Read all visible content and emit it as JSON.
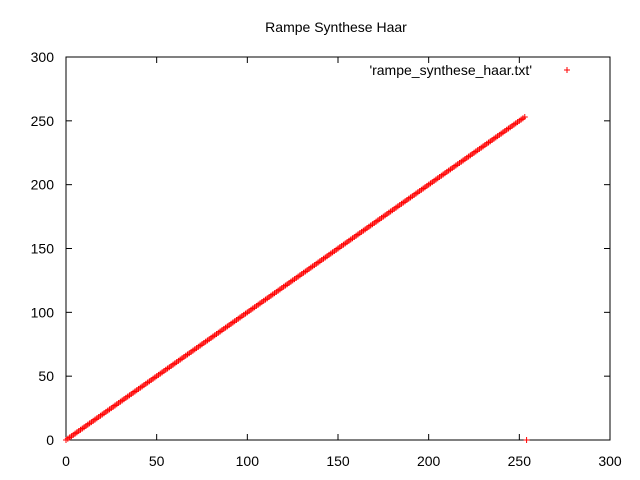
{
  "chart_data": {
    "type": "scatter",
    "title": "Rampe Synthese Haar",
    "xlabel": "",
    "ylabel": "",
    "xlim": [
      0,
      300
    ],
    "ylim": [
      0,
      300
    ],
    "x_ticks": [
      0,
      50,
      100,
      150,
      200,
      250,
      300
    ],
    "y_ticks": [
      0,
      50,
      100,
      150,
      200,
      250,
      300
    ],
    "grid": false,
    "legend_position": "top-right",
    "series": [
      {
        "name": "'rampe_synthese_haar.txt'",
        "marker": "+",
        "color": "#ff0000",
        "x_start": 0,
        "x_end": 253,
        "y_equals_x": true,
        "extra_points": [
          {
            "x": 254,
            "y": 0
          }
        ]
      }
    ]
  }
}
